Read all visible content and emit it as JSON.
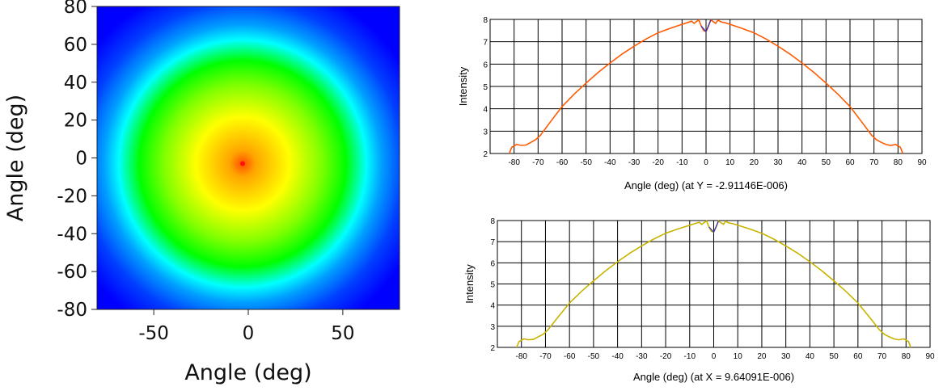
{
  "chart_data": [
    {
      "type": "heatmap",
      "xlabel": "Angle (deg)",
      "ylabel": "Angle (deg)",
      "xlim": [
        -80,
        80
      ],
      "ylim": [
        -80,
        80
      ],
      "x_ticks": [
        "-50",
        "0",
        "50"
      ],
      "y_ticks": [
        "80",
        "60",
        "40",
        "20",
        "0",
        "-20",
        "-40",
        "-60",
        "-80"
      ],
      "x_tick_values": [
        -50,
        0,
        50
      ],
      "y_tick_values": [
        80,
        60,
        40,
        20,
        0,
        -20,
        -40,
        -60,
        -80
      ],
      "center": [
        -3,
        -3
      ],
      "peak_marker": "red dot at center",
      "colormap": [
        "#ff5000",
        "#ffa500",
        "#ffff00",
        "#7fff00",
        "#00ff00",
        "#00ffff",
        "#00a0ff",
        "#0040ff",
        "#0000ff"
      ],
      "grid": false
    },
    {
      "type": "line",
      "xlabel": "Angle (deg) (at Y = -2.91146E-006)",
      "ylabel": "Intensity",
      "xlim": [
        -90,
        90
      ],
      "ylim": [
        2,
        8
      ],
      "x_ticks": [
        "-80",
        "-70",
        "-60",
        "-50",
        "-40",
        "-30",
        "-20",
        "-10",
        "0",
        "10",
        "20",
        "30",
        "40",
        "50",
        "60",
        "70",
        "80",
        "90"
      ],
      "y_ticks": [
        "2",
        "3",
        "4",
        "5",
        "6",
        "7",
        "8"
      ],
      "grid": true,
      "series": [
        {
          "color": "#ff5a00",
          "x": [
            -82,
            -81,
            -79,
            -77,
            -75,
            -73,
            -71,
            -69,
            -65,
            -60,
            -55,
            -50,
            -45,
            -40,
            -35,
            -30,
            -25,
            -20,
            -15,
            -10,
            -8,
            -6,
            -5,
            -4,
            -3,
            -2,
            -1,
            0,
            1,
            2,
            3,
            4,
            5,
            6,
            7,
            8,
            10,
            15,
            20,
            25,
            30,
            35,
            40,
            45,
            50,
            55,
            60,
            65,
            69,
            71,
            73,
            75,
            77,
            79,
            81,
            82
          ],
          "values": [
            2.0,
            2.28,
            2.4,
            2.36,
            2.38,
            2.5,
            2.62,
            2.82,
            3.4,
            4.1,
            4.65,
            5.15,
            5.62,
            6.05,
            6.45,
            6.8,
            7.12,
            7.4,
            7.6,
            7.78,
            7.85,
            7.92,
            7.82,
            7.9,
            7.98,
            7.7,
            7.5,
            7.45,
            7.7,
            7.98,
            7.9,
            7.82,
            7.97,
            7.9,
            7.87,
            7.85,
            7.78,
            7.6,
            7.4,
            7.12,
            6.8,
            6.45,
            6.05,
            5.62,
            5.15,
            4.65,
            4.1,
            3.4,
            2.82,
            2.62,
            2.5,
            2.4,
            2.36,
            2.4,
            2.28,
            2.0
          ]
        }
      ]
    },
    {
      "type": "line",
      "xlabel": "Angle (deg) (at X = 9.64091E-006)",
      "ylabel": "Intensity",
      "xlim": [
        -90,
        90
      ],
      "ylim": [
        2,
        8
      ],
      "x_ticks": [
        "-80",
        "-70",
        "-60",
        "-50",
        "-40",
        "-30",
        "-20",
        "-10",
        "0",
        "10",
        "20",
        "30",
        "40",
        "50",
        "60",
        "70",
        "80",
        "90"
      ],
      "y_ticks": [
        "2",
        "3",
        "4",
        "5",
        "6",
        "7",
        "8"
      ],
      "grid": true,
      "series": [
        {
          "color": "#c8b400",
          "x": [
            -82,
            -81,
            -79,
            -77,
            -75,
            -73,
            -71,
            -69,
            -65,
            -60,
            -55,
            -50,
            -45,
            -40,
            -35,
            -30,
            -25,
            -20,
            -15,
            -10,
            -8,
            -6,
            -5,
            -4,
            -3,
            -2,
            -1,
            0,
            1,
            2,
            3,
            4,
            5,
            6,
            7,
            8,
            10,
            15,
            20,
            25,
            30,
            35,
            40,
            45,
            50,
            55,
            60,
            65,
            69,
            71,
            73,
            75,
            77,
            79,
            81,
            82
          ],
          "values": [
            2.0,
            2.28,
            2.4,
            2.36,
            2.38,
            2.5,
            2.62,
            2.82,
            3.4,
            4.1,
            4.65,
            5.15,
            5.62,
            6.05,
            6.45,
            6.8,
            7.12,
            7.4,
            7.6,
            7.78,
            7.85,
            7.92,
            7.82,
            7.9,
            7.98,
            7.7,
            7.5,
            7.45,
            7.7,
            7.98,
            7.9,
            7.82,
            7.97,
            7.9,
            7.87,
            7.85,
            7.78,
            7.6,
            7.4,
            7.12,
            6.8,
            6.45,
            6.05,
            5.62,
            5.15,
            4.65,
            4.1,
            3.4,
            2.82,
            2.62,
            2.5,
            2.4,
            2.36,
            2.4,
            2.28,
            2.0
          ]
        }
      ]
    }
  ]
}
